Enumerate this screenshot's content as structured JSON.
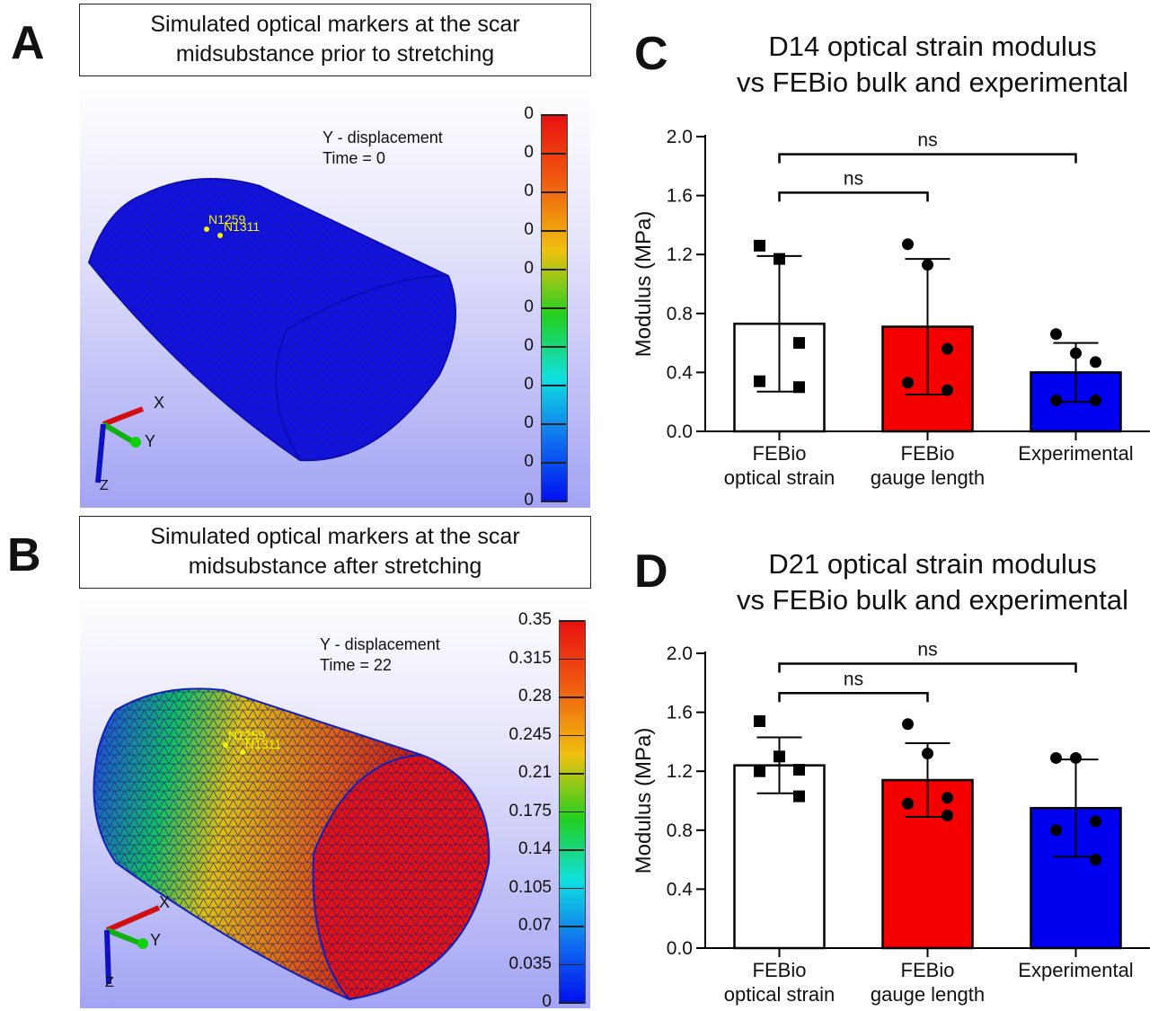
{
  "panels": {
    "a": {
      "letter": "A",
      "caption": [
        "Simulated optical markers at the scar",
        "midsubstance prior to stretching"
      ],
      "sim_label": [
        "Y - displacement",
        "Time = 0"
      ],
      "markers": [
        "N1259",
        "N1311"
      ],
      "colorbar": {
        "labels": [
          "0",
          "0",
          "0",
          "0",
          "0",
          "0",
          "0",
          "0",
          "0",
          "0",
          "0"
        ]
      },
      "axes": [
        "X",
        "Y",
        "Z"
      ]
    },
    "b": {
      "letter": "B",
      "caption": [
        "Simulated optical markers at the scar",
        "midsubstance after stretching"
      ],
      "sim_label": [
        "Y - displacement",
        "Time = 22"
      ],
      "markers": [
        "N1259",
        "N1311"
      ],
      "colorbar": {
        "labels": [
          "0.35",
          "0.315",
          "0.28",
          "0.245",
          "0.21",
          "0.175",
          "0.14",
          "0.105",
          "0.07",
          "0.035",
          "0"
        ]
      },
      "axes": [
        "X",
        "Y",
        "Z"
      ]
    },
    "c": {
      "letter": "C"
    },
    "d": {
      "letter": "D"
    }
  },
  "chart_data": [
    {
      "type": "bar",
      "title": [
        "D14 optical strain modulus",
        "vs FEBio bulk and experimental"
      ],
      "ylabel": "Modulus (MPa)",
      "ylim": [
        0,
        2.0
      ],
      "yticks": [
        "0.0",
        "0.4",
        "0.8",
        "1.2",
        "1.6",
        "2.0"
      ],
      "categories": [
        [
          "FEBio",
          "optical strain"
        ],
        [
          "FEBio",
          "gauge length"
        ],
        [
          "Experimental"
        ]
      ],
      "values": [
        0.73,
        0.71,
        0.4
      ],
      "sd": [
        0.46,
        0.46,
        0.2
      ],
      "colors": [
        "#ffffff",
        "#f40000",
        "#0000f0"
      ],
      "points": [
        [
          1.26,
          1.17,
          0.6,
          0.34,
          0.3
        ],
        [
          1.27,
          1.13,
          0.56,
          0.33,
          0.28
        ],
        [
          0.66,
          0.53,
          0.47,
          0.21,
          0.21
        ]
      ],
      "point_markers": [
        "square",
        "circle",
        "circle"
      ],
      "significance": [
        {
          "from": 0,
          "to": 1,
          "label": "ns",
          "level": 1.62
        },
        {
          "from": 0,
          "to": 2,
          "label": "ns",
          "level": 1.88
        }
      ]
    },
    {
      "type": "bar",
      "title": [
        "D21 optical strain modulus",
        "vs FEBio bulk and experimental"
      ],
      "ylabel": "Modulus (MPa)",
      "ylim": [
        0,
        2.0
      ],
      "yticks": [
        "0.0",
        "0.4",
        "0.8",
        "1.2",
        "1.6",
        "2.0"
      ],
      "categories": [
        [
          "FEBio",
          "optical strain"
        ],
        [
          "FEBio",
          "gauge length"
        ],
        [
          "Experimental"
        ]
      ],
      "values": [
        1.24,
        1.14,
        0.95
      ],
      "sd": [
        0.19,
        0.25,
        0.33
      ],
      "colors": [
        "#ffffff",
        "#f40000",
        "#0000f0"
      ],
      "points": [
        [
          1.54,
          1.3,
          1.21,
          1.2,
          1.03
        ],
        [
          1.52,
          1.32,
          1.02,
          0.98,
          0.9
        ],
        [
          1.29,
          1.29,
          0.86,
          0.8,
          0.6
        ]
      ],
      "point_markers": [
        "square",
        "circle",
        "circle"
      ],
      "significance": [
        {
          "from": 0,
          "to": 1,
          "label": "ns",
          "level": 1.73
        },
        {
          "from": 0,
          "to": 2,
          "label": "ns",
          "level": 1.93
        }
      ]
    }
  ]
}
